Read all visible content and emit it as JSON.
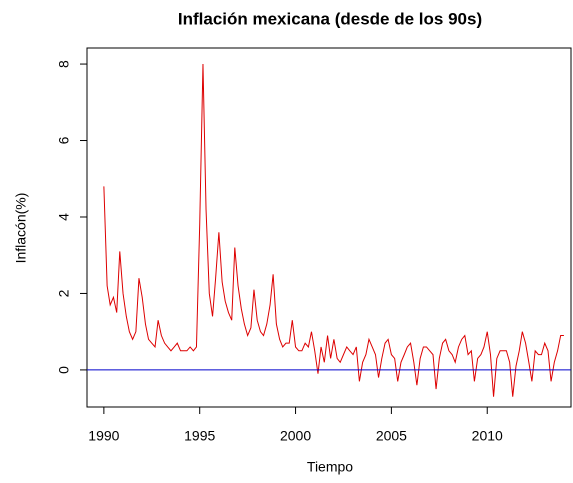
{
  "chart_data": {
    "type": "line",
    "title": "Inflación mexicana (desde de los 90s)",
    "x_label": "Tiempo",
    "y_label": "Inflacón(%)",
    "x": [
      1990,
      1990.17,
      1990.33,
      1990.5,
      1990.67,
      1990.83,
      1991,
      1991.17,
      1991.33,
      1991.5,
      1991.67,
      1991.83,
      1992,
      1992.17,
      1992.33,
      1992.5,
      1992.67,
      1992.83,
      1993,
      1993.17,
      1993.33,
      1993.5,
      1993.67,
      1993.83,
      1994,
      1994.17,
      1994.33,
      1994.5,
      1994.67,
      1994.83,
      1995,
      1995.17,
      1995.33,
      1995.5,
      1995.67,
      1995.83,
      1996,
      1996.17,
      1996.33,
      1996.5,
      1996.67,
      1996.83,
      1997,
      1997.17,
      1997.33,
      1997.5,
      1997.67,
      1997.83,
      1998,
      1998.17,
      1998.33,
      1998.5,
      1998.67,
      1998.83,
      1999,
      1999.17,
      1999.33,
      1999.5,
      1999.67,
      1999.83,
      2000,
      2000.17,
      2000.33,
      2000.5,
      2000.67,
      2000.83,
      2001,
      2001.17,
      2001.33,
      2001.5,
      2001.67,
      2001.83,
      2002,
      2002.17,
      2002.33,
      2002.5,
      2002.67,
      2002.83,
      2003,
      2003.17,
      2003.33,
      2003.5,
      2003.67,
      2003.83,
      2004,
      2004.17,
      2004.33,
      2004.5,
      2004.67,
      2004.83,
      2005,
      2005.17,
      2005.33,
      2005.5,
      2005.67,
      2005.83,
      2006,
      2006.17,
      2006.33,
      2006.5,
      2006.67,
      2006.83,
      2007,
      2007.17,
      2007.33,
      2007.5,
      2007.67,
      2007.83,
      2008,
      2008.17,
      2008.33,
      2008.5,
      2008.67,
      2008.83,
      2009,
      2009.17,
      2009.33,
      2009.5,
      2009.67,
      2009.83,
      2010,
      2010.17,
      2010.33,
      2010.5,
      2010.67,
      2010.83,
      2011,
      2011.17,
      2011.33,
      2011.5,
      2011.67,
      2011.83,
      2012,
      2012.17,
      2012.33,
      2012.5,
      2012.67,
      2012.83,
      2013,
      2013.17,
      2013.33,
      2013.5,
      2013.67,
      2013.83,
      2014
    ],
    "series": [
      {
        "color": "#dd0000",
        "values": [
          4.8,
          2.2,
          1.7,
          1.9,
          1.5,
          3.1,
          2.0,
          1.4,
          1.0,
          0.8,
          1.0,
          2.4,
          1.9,
          1.2,
          0.8,
          0.7,
          0.6,
          1.3,
          0.9,
          0.7,
          0.6,
          0.5,
          0.6,
          0.7,
          0.5,
          0.5,
          0.5,
          0.6,
          0.5,
          0.6,
          3.8,
          8.0,
          4.2,
          2.0,
          1.4,
          2.4,
          3.6,
          2.3,
          1.8,
          1.5,
          1.3,
          3.2,
          2.2,
          1.6,
          1.2,
          0.9,
          1.1,
          2.1,
          1.3,
          1.0,
          0.9,
          1.2,
          1.7,
          2.5,
          1.2,
          0.8,
          0.6,
          0.7,
          0.7,
          1.3,
          0.6,
          0.5,
          0.5,
          0.7,
          0.6,
          1.0,
          0.5,
          -0.1,
          0.6,
          0.2,
          0.9,
          0.3,
          0.8,
          0.3,
          0.2,
          0.4,
          0.6,
          0.5,
          0.4,
          0.6,
          -0.3,
          0.2,
          0.4,
          0.8,
          0.6,
          0.4,
          -0.2,
          0.3,
          0.7,
          0.8,
          0.4,
          0.3,
          -0.3,
          0.2,
          0.4,
          0.6,
          0.7,
          0.2,
          -0.4,
          0.3,
          0.6,
          0.6,
          0.5,
          0.4,
          -0.5,
          0.3,
          0.7,
          0.8,
          0.5,
          0.4,
          0.2,
          0.6,
          0.8,
          0.9,
          0.4,
          0.5,
          -0.3,
          0.3,
          0.4,
          0.6,
          1.0,
          0.4,
          -0.7,
          0.3,
          0.5,
          0.5,
          0.5,
          0.2,
          -0.7,
          0.1,
          0.5,
          1.0,
          0.7,
          0.2,
          -0.3,
          0.5,
          0.4,
          0.4,
          0.7,
          0.5,
          -0.3,
          0.2,
          0.5,
          0.9,
          0.9
        ]
      }
    ],
    "reference_line": {
      "value": 0,
      "color": "#0000cc"
    },
    "xlim": [
      1989.12,
      2014.37
    ],
    "xticks": [
      1990,
      1995,
      2000,
      2005,
      2010
    ],
    "ylim": [
      -0.97,
      8.42
    ],
    "yticks": [
      0,
      2,
      4,
      6,
      8
    ]
  }
}
